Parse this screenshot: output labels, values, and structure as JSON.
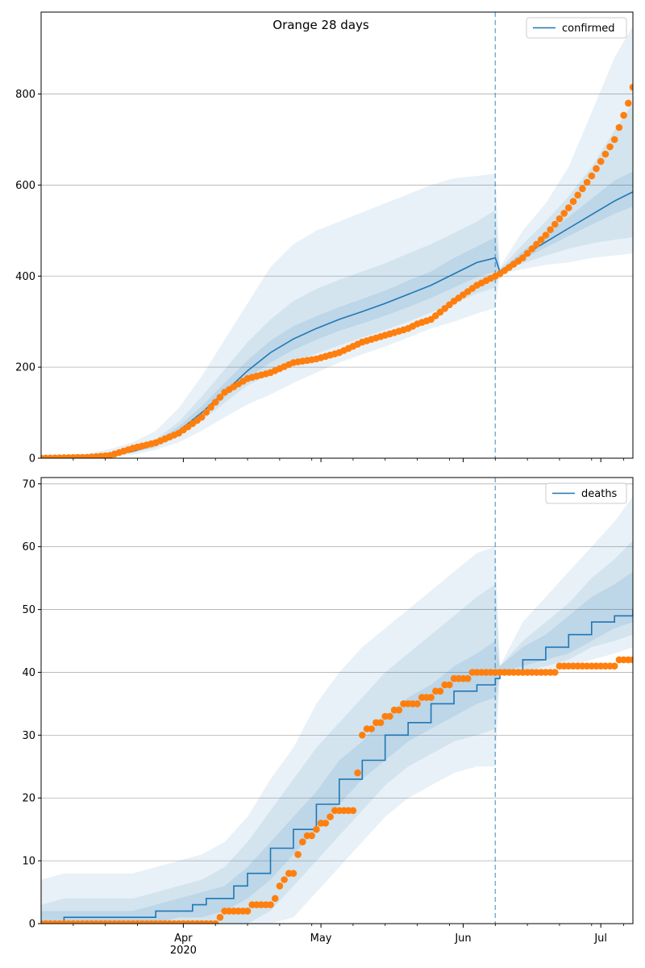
{
  "title": "Orange 28 days",
  "chart_data": [
    {
      "type": "line",
      "panel": "confirmed",
      "legend": {
        "entries": [
          "confirmed"
        ],
        "placement": "top-right"
      },
      "x_ticks": [
        {
          "label": "Apr"
        },
        {
          "label": "May"
        },
        {
          "label": "Jun"
        },
        {
          "label": "Jul"
        }
      ],
      "x_sublabel": "2020",
      "y_ticks": [
        0,
        200,
        400,
        600,
        800
      ],
      "ylim": [
        0,
        980
      ],
      "grid": "horizontal",
      "forecast_marker_day": 99,
      "series": [
        {
          "name": "confirmed",
          "role": "model median",
          "x": [
            0,
            10,
            15,
            20,
            25,
            30,
            35,
            40,
            45,
            50,
            55,
            60,
            65,
            70,
            75,
            80,
            85,
            90,
            95,
            99,
            100,
            105,
            110,
            115,
            120,
            125,
            129
          ],
          "y": [
            0,
            3,
            7,
            15,
            30,
            60,
            100,
            145,
            192,
            232,
            262,
            285,
            305,
            322,
            340,
            360,
            380,
            405,
            430,
            440,
            410,
            445,
            475,
            505,
            535,
            565,
            585
          ]
        },
        {
          "name": "observed",
          "role": "observed points",
          "x": [
            0,
            10,
            15,
            20,
            25,
            30,
            35,
            40,
            45,
            50,
            55,
            60,
            65,
            70,
            75,
            80,
            82,
            85,
            90,
            95,
            99,
            100,
            105,
            110,
            115,
            120,
            125,
            128,
            129
          ],
          "y": [
            0,
            2,
            6,
            22,
            34,
            55,
            90,
            145,
            175,
            188,
            210,
            218,
            232,
            255,
            270,
            285,
            295,
            305,
            345,
            380,
            400,
            405,
            440,
            490,
            550,
            620,
            700,
            780,
            815
          ]
        }
      ],
      "bands": [
        {
          "level": "outer",
          "x": [
            0,
            10,
            15,
            20,
            25,
            30,
            35,
            40,
            45,
            50,
            55,
            60,
            65,
            70,
            75,
            80,
            85,
            90,
            95,
            99,
            100,
            105,
            110,
            115,
            120,
            125,
            129
          ],
          "lower": [
            0,
            1,
            3,
            8,
            18,
            35,
            60,
            90,
            118,
            140,
            165,
            188,
            210,
            228,
            245,
            265,
            285,
            300,
            318,
            330,
            405,
            415,
            425,
            430,
            440,
            445,
            450
          ],
          "upper": [
            0,
            10,
            20,
            35,
            60,
            110,
            180,
            260,
            340,
            420,
            470,
            500,
            520,
            540,
            560,
            580,
            600,
            615,
            620,
            625,
            420,
            500,
            560,
            640,
            760,
            880,
            950
          ]
        },
        {
          "level": "middle",
          "x": [
            0,
            10,
            15,
            20,
            25,
            30,
            35,
            40,
            45,
            50,
            55,
            60,
            65,
            70,
            75,
            80,
            85,
            90,
            95,
            99,
            100,
            105,
            110,
            115,
            120,
            125,
            129
          ],
          "lower": [
            0,
            2,
            5,
            12,
            24,
            48,
            82,
            122,
            160,
            185,
            210,
            230,
            248,
            265,
            282,
            300,
            320,
            340,
            362,
            375,
            408,
            428,
            445,
            460,
            472,
            480,
            485
          ],
          "upper": [
            0,
            6,
            12,
            24,
            42,
            80,
            135,
            195,
            255,
            305,
            345,
            372,
            392,
            410,
            428,
            450,
            470,
            495,
            520,
            545,
            415,
            470,
            520,
            575,
            640,
            720,
            780
          ]
        },
        {
          "level": "inner",
          "x": [
            0,
            10,
            15,
            20,
            25,
            30,
            35,
            40,
            45,
            50,
            55,
            60,
            65,
            70,
            75,
            80,
            85,
            90,
            95,
            99,
            100,
            105,
            110,
            115,
            120,
            125,
            129
          ],
          "lower": [
            0,
            2,
            6,
            13,
            27,
            54,
            90,
            133,
            176,
            210,
            238,
            260,
            280,
            296,
            313,
            332,
            352,
            375,
            398,
            410,
            410,
            437,
            463,
            488,
            513,
            537,
            553
          ],
          "upper": [
            0,
            4,
            9,
            19,
            36,
            70,
            114,
            165,
            215,
            258,
            290,
            312,
            332,
            350,
            368,
            390,
            410,
            440,
            465,
            485,
            412,
            455,
            490,
            530,
            570,
            610,
            630
          ]
        }
      ]
    },
    {
      "type": "line",
      "panel": "deaths",
      "legend": {
        "entries": [
          "deaths"
        ],
        "placement": "top-right"
      },
      "x_ticks": [
        {
          "label": "Apr"
        },
        {
          "label": "May"
        },
        {
          "label": "Jun"
        },
        {
          "label": "Jul"
        }
      ],
      "x_sublabel": "2020",
      "y_ticks": [
        0,
        10,
        20,
        30,
        40,
        50,
        60,
        70
      ],
      "ylim": [
        0,
        71
      ],
      "grid": "horizontal",
      "forecast_marker_day": 99,
      "series": [
        {
          "name": "deaths",
          "role": "model median",
          "x": [
            0,
            4,
            5,
            24,
            25,
            32,
            33,
            35,
            36,
            38,
            42,
            45,
            50,
            55,
            60,
            65,
            70,
            75,
            80,
            85,
            90,
            95,
            99,
            100,
            105,
            110,
            115,
            120,
            125,
            129
          ],
          "y": [
            0,
            0,
            1,
            1,
            2,
            2,
            3,
            3,
            4,
            4,
            6,
            8,
            12,
            15,
            19,
            23,
            26,
            30,
            32,
            35,
            37,
            38,
            39,
            40,
            42,
            44,
            46,
            48,
            49,
            50
          ],
          "step": true
        },
        {
          "name": "observed",
          "role": "observed points",
          "x": [
            0,
            10,
            20,
            30,
            38,
            39,
            40,
            45,
            46,
            50,
            53,
            55,
            57,
            60,
            63,
            65,
            68,
            70,
            75,
            80,
            85,
            87,
            90,
            92,
            95,
            99,
            100,
            105,
            110,
            115,
            120,
            125,
            127,
            129
          ],
          "y": [
            0,
            0,
            0,
            0,
            0,
            1,
            2,
            2,
            3,
            3,
            7,
            8,
            13,
            15,
            17,
            18,
            18,
            30,
            33,
            35,
            36,
            37,
            39,
            39,
            40,
            40,
            40,
            40,
            40,
            41,
            41,
            41,
            42,
            42
          ]
        }
      ],
      "bands": [
        {
          "level": "outer",
          "x": [
            0,
            5,
            10,
            20,
            25,
            30,
            35,
            40,
            45,
            50,
            55,
            60,
            65,
            70,
            75,
            80,
            85,
            90,
            95,
            99,
            100,
            105,
            110,
            115,
            120,
            125,
            129
          ],
          "lower": [
            0,
            0,
            0,
            0,
            0,
            0,
            0,
            0,
            0,
            0,
            1,
            5,
            9,
            13,
            17,
            20,
            22,
            24,
            25,
            25,
            40,
            40,
            40,
            41,
            42,
            43,
            44
          ],
          "upper": [
            7,
            8,
            8,
            8,
            9,
            10,
            11,
            13,
            17,
            23,
            28,
            35,
            40,
            44,
            47,
            50,
            53,
            56,
            59,
            60,
            41,
            48,
            52,
            56,
            60,
            64,
            68
          ]
        },
        {
          "level": "middle",
          "x": [
            0,
            5,
            10,
            20,
            25,
            30,
            35,
            40,
            45,
            50,
            55,
            60,
            65,
            70,
            75,
            80,
            85,
            90,
            95,
            99,
            100,
            105,
            110,
            115,
            120,
            125,
            129
          ],
          "lower": [
            0,
            0,
            0,
            0,
            0,
            0,
            0,
            0,
            0,
            2,
            6,
            10,
            14,
            18,
            22,
            25,
            27,
            29,
            30,
            31,
            40,
            40,
            41,
            42,
            44,
            45,
            46
          ],
          "upper": [
            3,
            4,
            4,
            4,
            5,
            6,
            7,
            9,
            13,
            18,
            23,
            28,
            32,
            36,
            40,
            43,
            46,
            49,
            52,
            54,
            41,
            45,
            48,
            51,
            55,
            58,
            61
          ]
        },
        {
          "level": "inner",
          "x": [
            0,
            5,
            10,
            20,
            25,
            30,
            35,
            40,
            45,
            50,
            55,
            60,
            65,
            70,
            75,
            80,
            85,
            90,
            95,
            99,
            100,
            105,
            110,
            115,
            120,
            125,
            129
          ],
          "lower": [
            0,
            0,
            0,
            0,
            0,
            1,
            1,
            2,
            4,
            7,
            11,
            15,
            19,
            23,
            26,
            29,
            31,
            33,
            35,
            36,
            40,
            41,
            42,
            43,
            45,
            47,
            48
          ],
          "upper": [
            2,
            2,
            2,
            2,
            3,
            4,
            5,
            6,
            9,
            13,
            17,
            21,
            26,
            29,
            33,
            36,
            38,
            41,
            43,
            45,
            41,
            44,
            46,
            49,
            52,
            54,
            56
          ]
        }
      ]
    }
  ]
}
